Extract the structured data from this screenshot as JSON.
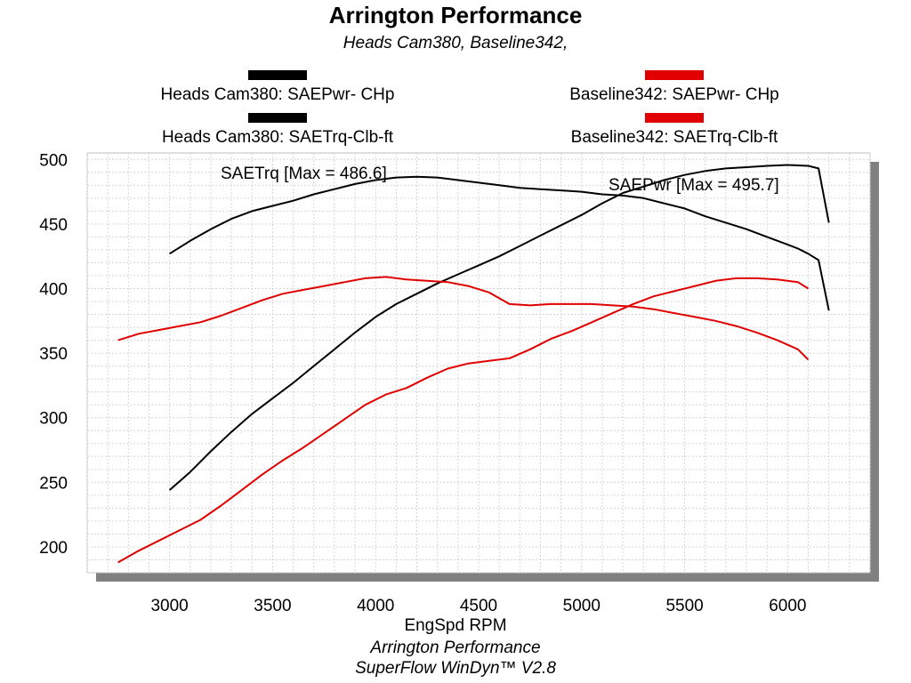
{
  "chart_data": {
    "type": "line",
    "title": "Arrington Performance",
    "subtitle": "Heads Cam380, Baseline342,",
    "xlabel": "EngSpd  RPM",
    "footer_line1": "Arrington Performance",
    "footer_line2": "SuperFlow WinDyn™ V2.8",
    "xlim": [
      2600,
      6400
    ],
    "ylim": [
      180,
      505
    ],
    "x_ticks": [
      3000,
      3500,
      4000,
      4500,
      5000,
      5500,
      6000
    ],
    "y_ticks": [
      200,
      250,
      300,
      350,
      400,
      450,
      500
    ],
    "grid": true,
    "legend_position": "top",
    "annotations": [
      {
        "text": "SAETrq [Max = 486.6]"
      },
      {
        "text": "SAEPwr [Max = 495.7]"
      }
    ],
    "series": [
      {
        "name": "Heads Cam380: SAEPwr- CHp",
        "color": "#000000",
        "x": [
          3000,
          3100,
          3200,
          3300,
          3400,
          3500,
          3600,
          3700,
          3800,
          3900,
          4000,
          4100,
          4200,
          4300,
          4400,
          4500,
          4600,
          4700,
          4800,
          4900,
          5000,
          5100,
          5200,
          5300,
          5400,
          5500,
          5600,
          5700,
          5800,
          5900,
          6000,
          6100,
          6150,
          6200
        ],
        "y": [
          244,
          258,
          274,
          289,
          303,
          315,
          327,
          340,
          353,
          366,
          378,
          388,
          396,
          404,
          411,
          418,
          425,
          433,
          441,
          449,
          457,
          466,
          474,
          479,
          484,
          488,
          491,
          493,
          494,
          495,
          495.7,
          495,
          493,
          451
        ]
      },
      {
        "name": "Heads Cam380: SAETrq-Clb-ft",
        "color": "#000000",
        "x": [
          3000,
          3100,
          3200,
          3300,
          3400,
          3500,
          3600,
          3700,
          3800,
          3900,
          4000,
          4100,
          4200,
          4300,
          4400,
          4500,
          4600,
          4700,
          4800,
          4900,
          5000,
          5100,
          5200,
          5300,
          5400,
          5500,
          5600,
          5700,
          5800,
          5900,
          6000,
          6050,
          6100,
          6150,
          6200
        ],
        "y": [
          427,
          437,
          446,
          454,
          460,
          464,
          468,
          473,
          477,
          481,
          484,
          486,
          486.6,
          486,
          484,
          482,
          480,
          478,
          477,
          476,
          475,
          473,
          472,
          470,
          466,
          462,
          456,
          451,
          446,
          440,
          434,
          431,
          427,
          422,
          383
        ]
      },
      {
        "name": "Baseline342: SAEPwr- CHp",
        "color": "#e00000",
        "x": [
          2750,
          2850,
          2950,
          3050,
          3150,
          3250,
          3350,
          3450,
          3550,
          3650,
          3750,
          3850,
          3950,
          4050,
          4150,
          4250,
          4350,
          4450,
          4550,
          4650,
          4750,
          4850,
          4950,
          5050,
          5150,
          5250,
          5350,
          5450,
          5550,
          5650,
          5750,
          5850,
          5950,
          6050,
          6100
        ],
        "y": [
          188,
          197,
          205,
          213,
          221,
          232,
          244,
          256,
          267,
          277,
          288,
          299,
          310,
          318,
          323,
          331,
          338,
          342,
          344,
          346,
          353,
          361,
          367,
          374,
          381,
          388,
          394,
          398,
          402,
          406,
          408,
          408,
          407,
          405,
          400
        ]
      },
      {
        "name": "Baseline342: SAETrq-Clb-ft",
        "color": "#e00000",
        "x": [
          2750,
          2850,
          2950,
          3050,
          3150,
          3250,
          3350,
          3450,
          3550,
          3650,
          3750,
          3850,
          3950,
          4050,
          4150,
          4250,
          4350,
          4450,
          4550,
          4650,
          4750,
          4850,
          4950,
          5050,
          5150,
          5250,
          5350,
          5450,
          5550,
          5650,
          5750,
          5850,
          5950,
          6050,
          6100
        ],
        "y": [
          360,
          365,
          368,
          371,
          374,
          379,
          385,
          391,
          396,
          399,
          402,
          405,
          408,
          409,
          407,
          406,
          405,
          402,
          397,
          388,
          387,
          388,
          388,
          388,
          387,
          386,
          384,
          381,
          378,
          375,
          371,
          366,
          360,
          353,
          345
        ]
      }
    ]
  }
}
